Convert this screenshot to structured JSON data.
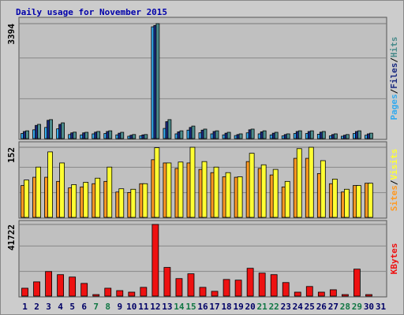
{
  "chart_data": [
    {
      "type": "bar",
      "title": "Daily usage for November 2015",
      "ylim": [
        0,
        3580
      ],
      "yticks": [
        3394
      ],
      "legend_separator": "/",
      "series": [
        {
          "name": "Pages",
          "color": "#33aaee",
          "values": [
            150,
            260,
            330,
            290,
            120,
            110,
            140,
            150,
            110,
            70,
            80,
            3300,
            300,
            140,
            250,
            170,
            140,
            110,
            90,
            170,
            140,
            110,
            80,
            150,
            150,
            130,
            80,
            70,
            150,
            100,
            0
          ]
        },
        {
          "name": "Files",
          "color": "#1a2a80",
          "values": [
            210,
            390,
            540,
            420,
            170,
            170,
            190,
            210,
            160,
            100,
            110,
            3340,
            500,
            200,
            330,
            250,
            210,
            160,
            120,
            260,
            200,
            160,
            120,
            210,
            210,
            190,
            120,
            100,
            210,
            140,
            0
          ]
        },
        {
          "name": "Hits",
          "color": "#4c8c8c",
          "values": [
            230,
            420,
            560,
            465,
            190,
            186,
            210,
            230,
            186,
            120,
            120,
            3394,
            560,
            230,
            370,
            280,
            230,
            186,
            140,
            280,
            230,
            186,
            140,
            230,
            230,
            210,
            140,
            120,
            230,
            160,
            0
          ]
        }
      ]
    },
    {
      "type": "bar",
      "ylim": [
        0,
        164
      ],
      "yticks": [
        152
      ],
      "legend_separator": "/",
      "series": [
        {
          "name": "Sites",
          "color": "#ff9922",
          "values": [
            69,
            87,
            87,
            78,
            64,
            66,
            73,
            78,
            55,
            54,
            73,
            125,
            118,
            106,
            118,
            104,
            97,
            88,
            87,
            121,
            106,
            92,
            66,
            128,
            128,
            95,
            73,
            55,
            69,
            74,
            0
          ]
        },
        {
          "name": "Visits",
          "color": "#ffff33",
          "values": [
            81,
            109,
            142,
            118,
            71,
            76,
            85,
            109,
            62,
            61,
            73,
            151,
            118,
            120,
            152,
            121,
            109,
            97,
            88,
            139,
            114,
            104,
            78,
            149,
            152,
            123,
            83,
            61,
            69,
            74,
            0
          ]
        }
      ]
    },
    {
      "type": "bar",
      "ylim": [
        0,
        44000
      ],
      "yticks": [
        41722
      ],
      "categories": [
        "1",
        "2",
        "3",
        "4",
        "5",
        "6",
        "7",
        "8",
        "9",
        "10",
        "11",
        "12",
        "13",
        "14",
        "15",
        "16",
        "17",
        "18",
        "19",
        "20",
        "21",
        "22",
        "23",
        "24",
        "25",
        "26",
        "27",
        "28",
        "29",
        "30",
        "31"
      ],
      "weekend": [
        false,
        false,
        false,
        false,
        false,
        false,
        true,
        true,
        false,
        false,
        false,
        false,
        false,
        true,
        true,
        false,
        false,
        false,
        false,
        false,
        true,
        true,
        false,
        false,
        false,
        false,
        false,
        true,
        true,
        false,
        false
      ],
      "weekend_color": "#117744",
      "weekday_color": "#000066",
      "series": [
        {
          "name": "KBytes",
          "color": "#ee1111",
          "values": [
            4600,
            8300,
            14300,
            12500,
            11100,
            7400,
            900,
            4600,
            3200,
            2300,
            5100,
            41722,
            16700,
            10200,
            13000,
            5100,
            2800,
            9700,
            9300,
            16200,
            13400,
            12500,
            7900,
            2300,
            5600,
            2300,
            3700,
            900,
            15700,
            900,
            0
          ]
        }
      ]
    }
  ]
}
